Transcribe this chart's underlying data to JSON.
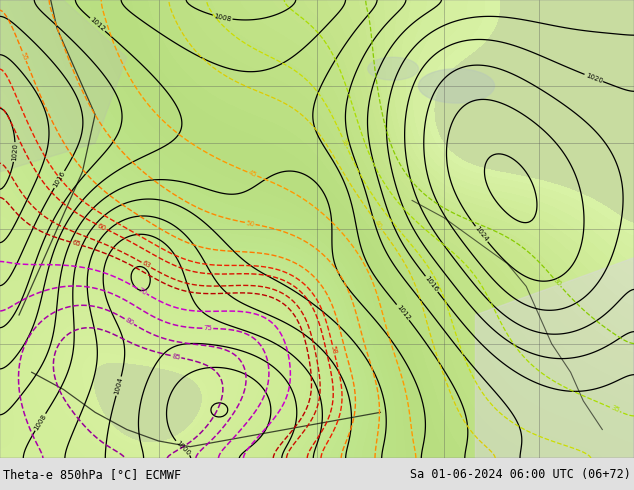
{
  "title_left": "Theta-e 850hPa [°C] ECMWF",
  "title_right": "Sa 01-06-2024 06:00 UTC (06+72)",
  "fig_width": 6.34,
  "fig_height": 4.9,
  "dpi": 100,
  "label_fontsize": 8.5,
  "label_color": "#000000",
  "bottom_bg": "#e8e8e8",
  "map_bg": "#c8dca0"
}
